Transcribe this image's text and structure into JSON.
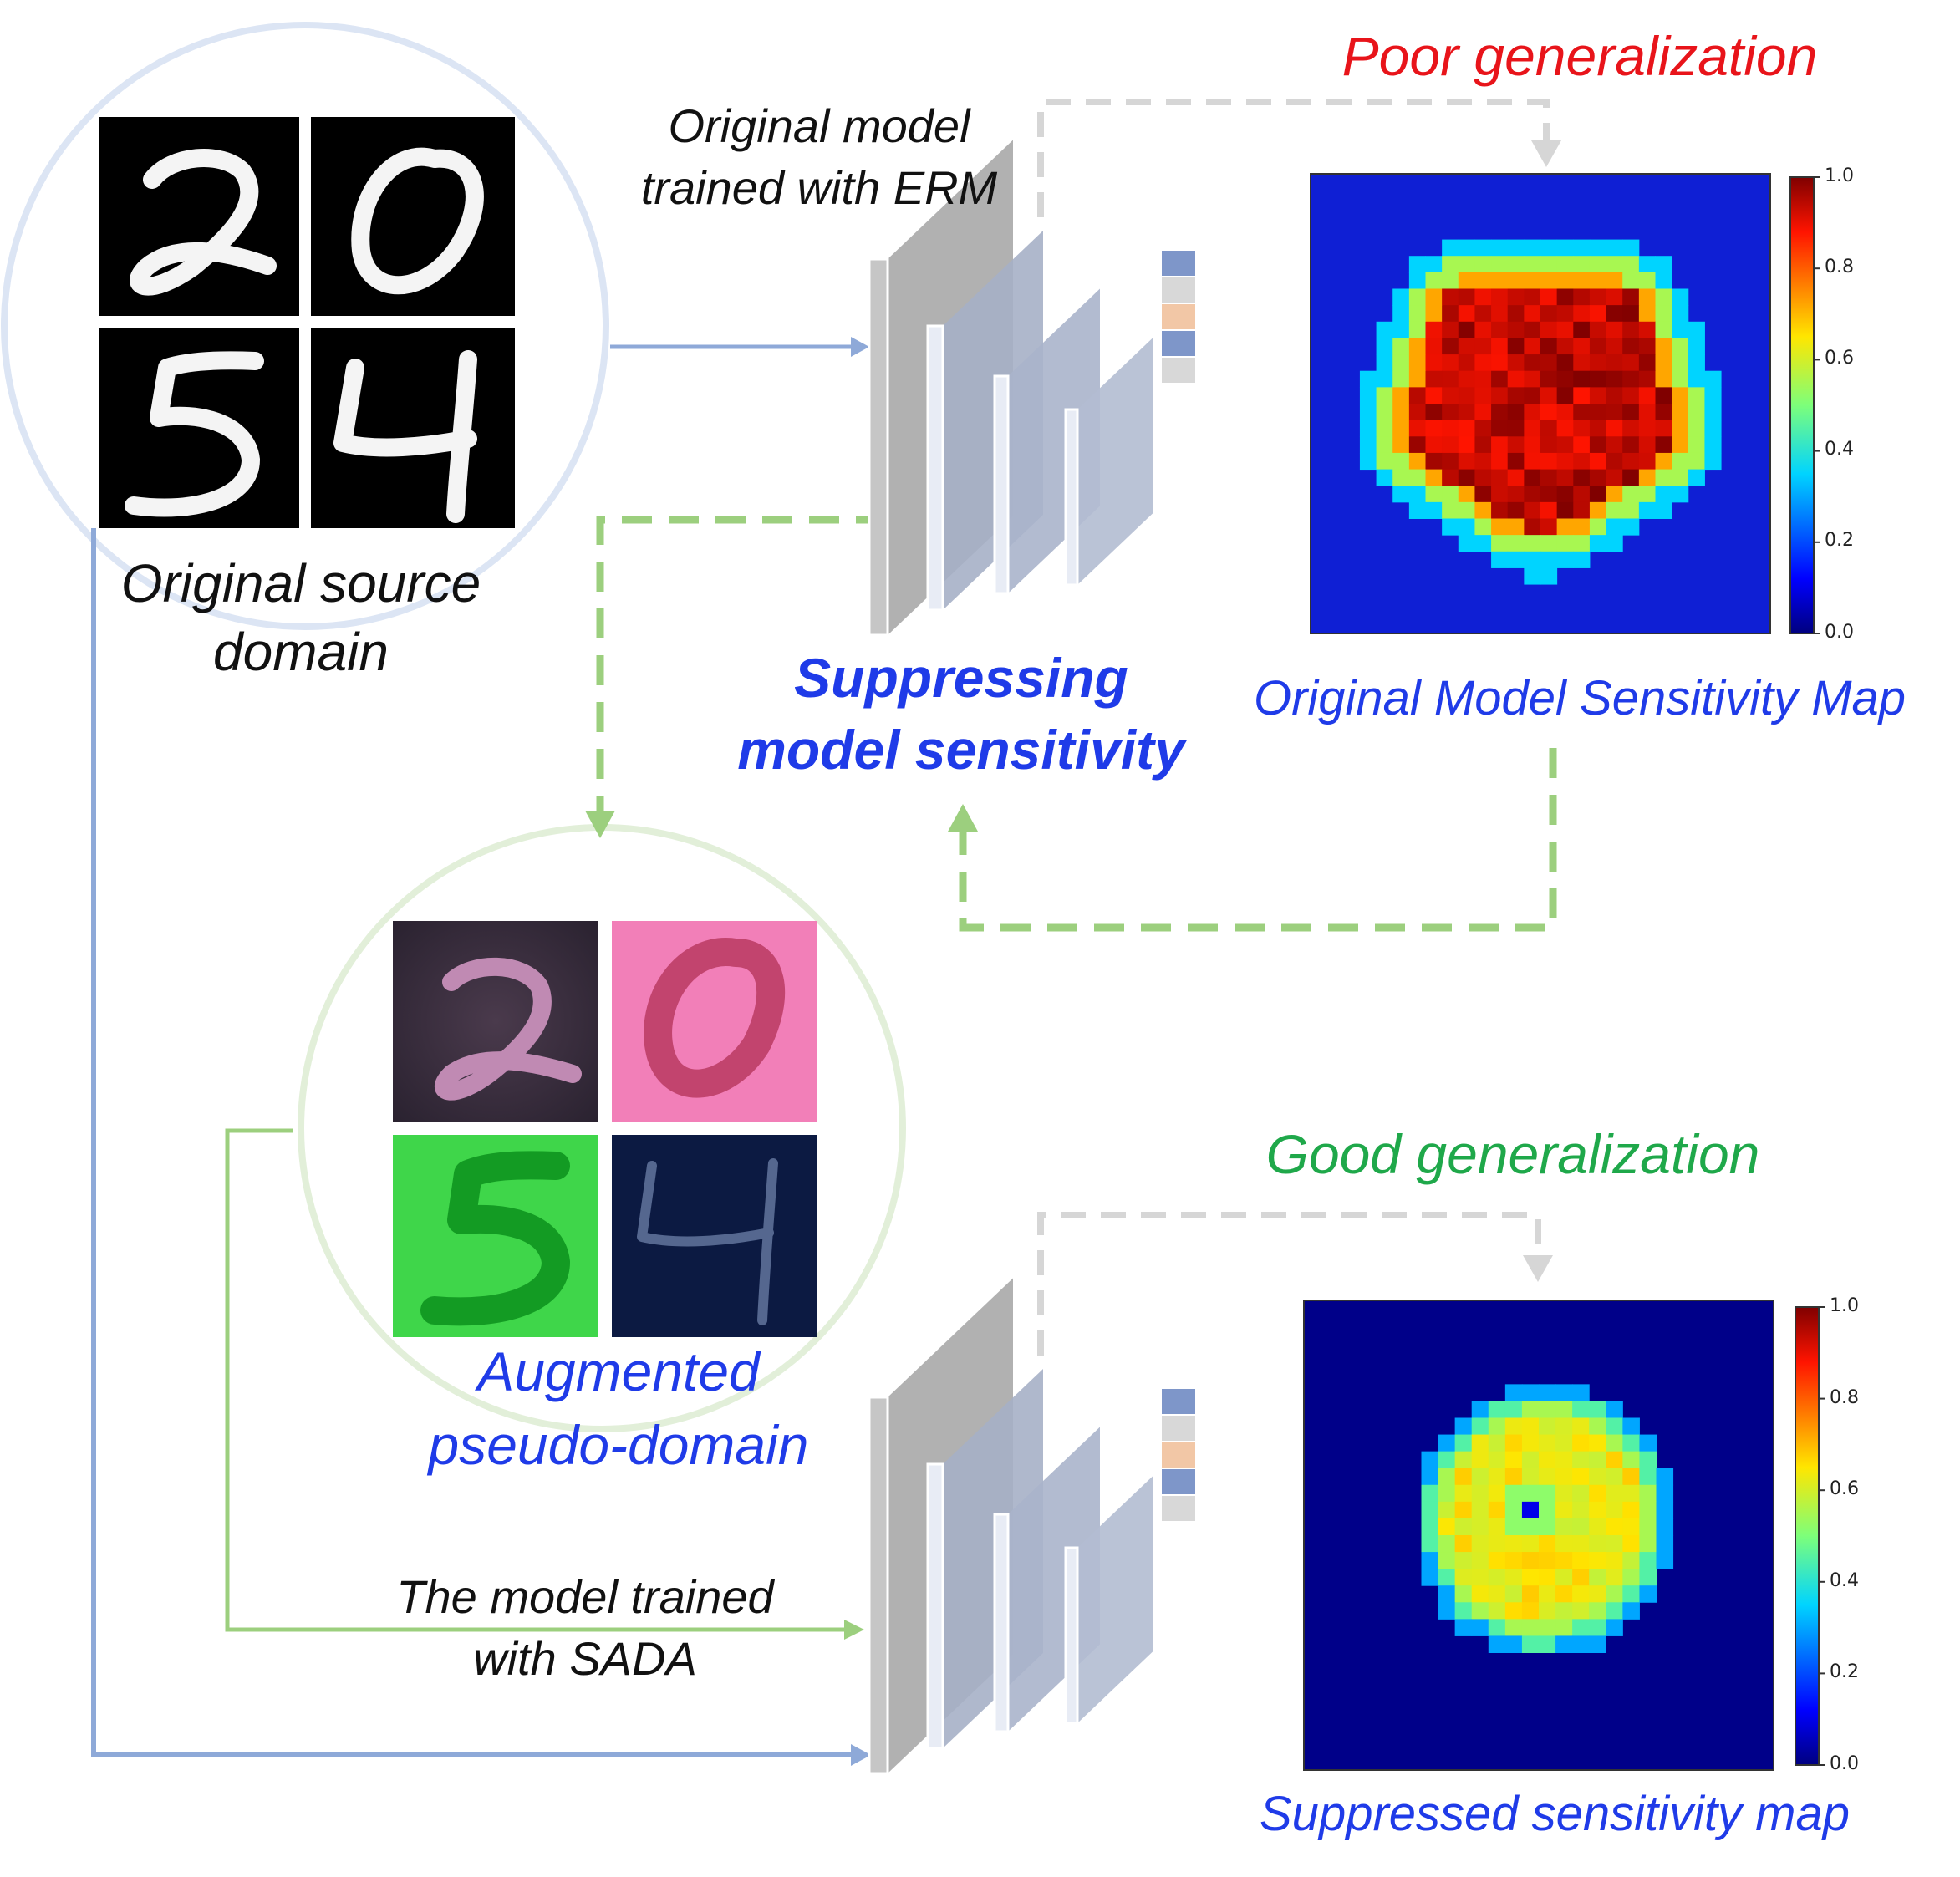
{
  "source": {
    "label_line1": "Original source",
    "label_line2": "domain"
  },
  "augmented": {
    "label_line1": "Augmented",
    "label_line2": "pseudo-domain"
  },
  "erm_model": {
    "label_line1": "Original model",
    "label_line2": "trained with ERM"
  },
  "sada_model": {
    "label_line1": "The model trained",
    "label_line2": "with SADA"
  },
  "suppress": {
    "label_line1": "Suppressing",
    "label_line2": "model sensitivity"
  },
  "poor": {
    "label": "Poor generalization"
  },
  "good": {
    "label": "Good generalization"
  },
  "map_original": {
    "caption": "Original Model Sensitivity Map"
  },
  "map_suppressed": {
    "caption": "Suppressed sensitivity map"
  },
  "colorbar": {
    "ticks": [
      "1.0",
      "0.8",
      "0.6",
      "0.4",
      "0.2",
      "0.0"
    ]
  },
  "digits": [
    "2",
    "0",
    "5",
    "4"
  ],
  "colors": {
    "blue_arrow": "#8ea9d8",
    "green_arrow": "#9ccf7e",
    "gray_arrow": "#d6d6d6",
    "heat_bg": "#0f1fd4",
    "label_blue": "#1f3be8",
    "label_red": "#e8141a",
    "label_green": "#1fa84a"
  }
}
